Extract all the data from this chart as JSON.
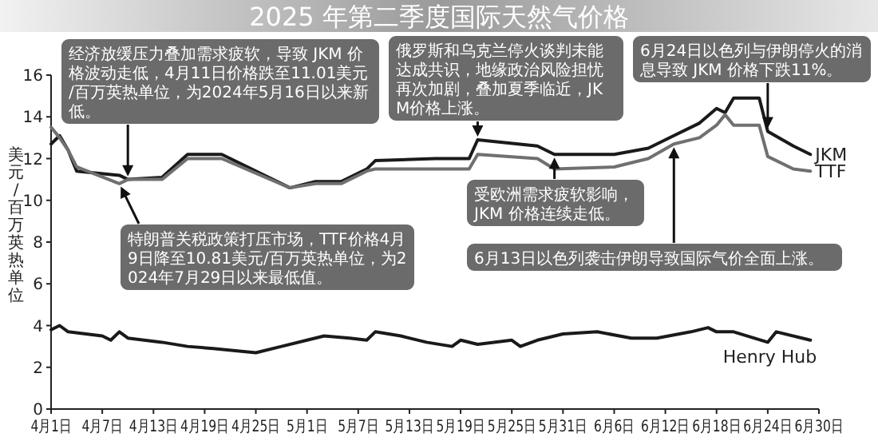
{
  "chart_data": {
    "type": "line",
    "title": "2025 年第二季度国际天然气价格",
    "ylabel": "美元/百万英热单位",
    "xlim": [
      "2025-04-01",
      "2025-06-30"
    ],
    "ylim": [
      0,
      16
    ],
    "yticks": [
      0,
      2,
      4,
      6,
      8,
      10,
      12,
      14,
      16
    ],
    "xticks": [
      {
        "value": "2025-04-01",
        "label": "4月1日"
      },
      {
        "value": "2025-04-07",
        "label": "4月7日"
      },
      {
        "value": "2025-04-13",
        "label": "4月13日"
      },
      {
        "value": "2025-04-19",
        "label": "4月19日"
      },
      {
        "value": "2025-04-25",
        "label": "4月25日"
      },
      {
        "value": "2025-05-01",
        "label": "5月1日"
      },
      {
        "value": "2025-05-07",
        "label": "5月7日"
      },
      {
        "value": "2025-05-13",
        "label": "5月13日"
      },
      {
        "value": "2025-05-19",
        "label": "5月19日"
      },
      {
        "value": "2025-05-25",
        "label": "5月25日"
      },
      {
        "value": "2025-05-31",
        "label": "5月31日"
      },
      {
        "value": "2025-06-06",
        "label": "6月6日"
      },
      {
        "value": "2025-06-12",
        "label": "6月12日"
      },
      {
        "value": "2025-06-18",
        "label": "6月18日"
      },
      {
        "value": "2025-06-24",
        "label": "6月24日"
      },
      {
        "value": "2025-06-30",
        "label": "6月30日"
      }
    ],
    "series": [
      {
        "name": "JKM",
        "color": "#1a1a1a",
        "x": [
          "2025-04-01",
          "2025-04-02",
          "2025-04-03",
          "2025-04-04",
          "2025-04-09",
          "2025-04-10",
          "2025-04-14",
          "2025-04-17",
          "2025-04-21",
          "2025-04-29",
          "2025-05-02",
          "2025-05-05",
          "2025-05-08",
          "2025-05-09",
          "2025-05-16",
          "2025-05-20",
          "2025-05-21",
          "2025-05-28",
          "2025-05-30",
          "2025-06-06",
          "2025-06-10",
          "2025-06-13",
          "2025-06-16",
          "2025-06-18",
          "2025-06-19",
          "2025-06-20",
          "2025-06-23",
          "2025-06-24",
          "2025-06-27",
          "2025-06-29"
        ],
        "values": [
          12.7,
          13.1,
          12.4,
          11.4,
          11.2,
          11.0,
          11.1,
          12.2,
          12.2,
          10.6,
          10.9,
          10.9,
          11.5,
          11.9,
          12.0,
          12.0,
          12.9,
          12.6,
          12.2,
          12.2,
          12.5,
          13.1,
          13.7,
          14.4,
          14.2,
          14.9,
          14.9,
          13.3,
          12.6,
          12.2
        ]
      },
      {
        "name": "TTF",
        "color": "#707070",
        "x": [
          "2025-04-01",
          "2025-04-02",
          "2025-04-03",
          "2025-04-04",
          "2025-04-09",
          "2025-04-10",
          "2025-04-14",
          "2025-04-17",
          "2025-04-21",
          "2025-04-29",
          "2025-05-02",
          "2025-05-05",
          "2025-05-08",
          "2025-05-09",
          "2025-05-16",
          "2025-05-20",
          "2025-05-21",
          "2025-05-28",
          "2025-05-30",
          "2025-06-06",
          "2025-06-10",
          "2025-06-13",
          "2025-06-16",
          "2025-06-18",
          "2025-06-19",
          "2025-06-20",
          "2025-06-23",
          "2025-06-24",
          "2025-06-27",
          "2025-06-29"
        ],
        "values": [
          13.5,
          13.0,
          12.4,
          11.6,
          10.8,
          11.0,
          11.0,
          12.0,
          12.0,
          10.6,
          10.8,
          10.8,
          11.4,
          11.5,
          11.5,
          11.5,
          12.2,
          12.0,
          11.5,
          11.6,
          12.0,
          12.7,
          13.0,
          13.6,
          14.1,
          13.6,
          13.6,
          12.1,
          11.5,
          11.4
        ]
      },
      {
        "name": "Henry Hub",
        "color": "#1a1a1a",
        "x": [
          "2025-04-01",
          "2025-04-02",
          "2025-04-03",
          "2025-04-07",
          "2025-04-08",
          "2025-04-09",
          "2025-04-10",
          "2025-04-14",
          "2025-04-17",
          "2025-04-20",
          "2025-04-25",
          "2025-04-28",
          "2025-05-01",
          "2025-05-03",
          "2025-05-06",
          "2025-05-08",
          "2025-05-09",
          "2025-05-12",
          "2025-05-15",
          "2025-05-18",
          "2025-05-19",
          "2025-05-21",
          "2025-05-25",
          "2025-05-26",
          "2025-05-28",
          "2025-05-31",
          "2025-06-04",
          "2025-06-08",
          "2025-06-11",
          "2025-06-15",
          "2025-06-17",
          "2025-06-18",
          "2025-06-20",
          "2025-06-24",
          "2025-06-25",
          "2025-06-29"
        ],
        "values": [
          3.8,
          4.0,
          3.7,
          3.5,
          3.3,
          3.7,
          3.4,
          3.2,
          3.0,
          2.9,
          2.7,
          3.0,
          3.3,
          3.5,
          3.4,
          3.3,
          3.7,
          3.5,
          3.2,
          3.0,
          3.3,
          3.1,
          3.3,
          3.0,
          3.3,
          3.6,
          3.7,
          3.4,
          3.4,
          3.7,
          3.9,
          3.7,
          3.7,
          3.2,
          3.7,
          3.3
        ]
      }
    ],
    "annotations": [
      {
        "text": "经济放缓压力叠加需求疲软，导致 JKM 价格波动走低，4月11日价格跌至11.01美元/百万英热单位，为2024年5月16日以来新低。",
        "x": "2025-04-10",
        "y": 11.0
      },
      {
        "text": "特朗普关税政策打压市场，TTF价格4月9日降至10.81美元/百万英热单位，为2024年7月29日以来最低值。",
        "x": "2025-04-09",
        "y": 10.8
      },
      {
        "text": "俄罗斯和乌克兰停火谈判未能达成共识，地缘政治风险担忧再次加剧，叠加夏季临近，JKM价格上涨。",
        "x": "2025-05-21",
        "y": 12.9
      },
      {
        "text": "受欧洲需求疲软影响，JKM 价格连续走低。",
        "x": "2025-05-30",
        "y": 12.2
      },
      {
        "text": "6月13日以色列袭击伊朗导致国际气价全面上涨。",
        "x": "2025-06-13",
        "y": 12.7
      },
      {
        "text": "6月24日以色列与伊朗停火的消息导致 JKM 价格下跌11%。",
        "x": "2025-06-24",
        "y": 13.3
      }
    ]
  }
}
